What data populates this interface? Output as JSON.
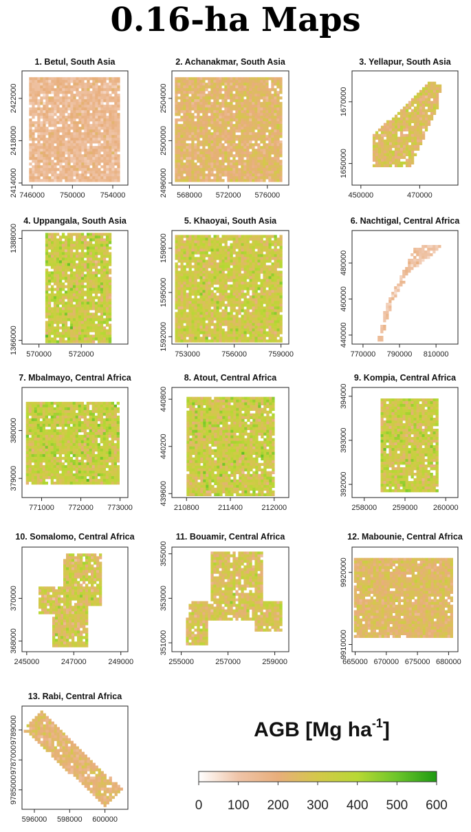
{
  "page_title": "0.16-ha Maps",
  "colors": {
    "scale": [
      "#ffffff",
      "#efc4a8",
      "#e8ae7b",
      "#d4c84a",
      "#b8d834",
      "#6cc52a",
      "#1e9a12"
    ]
  },
  "legend": {
    "title_main": "AGB [Mg ha",
    "title_sup": "-1",
    "title_close": "]",
    "min": 0,
    "max": 600,
    "ticks": [
      0,
      100,
      200,
      300,
      400,
      500,
      600
    ],
    "tick_labels": [
      "0",
      "100",
      "200",
      "300",
      "400",
      "500",
      "600"
    ]
  },
  "chart_data": [
    {
      "type": "heatmap",
      "title": "1. Betul, South Asia",
      "xlim": [
        745000,
        755500
      ],
      "ylim": [
        2413800,
        2424600
      ],
      "xticks": [
        746000,
        750000,
        754000
      ],
      "xtick_labels": [
        "746000",
        "750000",
        "754000"
      ],
      "yticks": [
        2414000,
        2418000,
        2422000
      ],
      "ytick_labels": [
        "2414000",
        "2418000",
        "2422000"
      ],
      "shape": [
        [
          745700,
          2414200
        ],
        [
          754800,
          2414200
        ],
        [
          754800,
          2424000
        ],
        [
          745700,
          2424000
        ]
      ],
      "mean_agb": 150,
      "spread": 60,
      "gap_fraction": 0.08
    },
    {
      "type": "heatmap",
      "title": "2. Achanakmar, South Asia",
      "xlim": [
        566200,
        578200
      ],
      "ylim": [
        2495800,
        2506600
      ],
      "xticks": [
        568000,
        572000,
        576000
      ],
      "xtick_labels": [
        "568000",
        "572000",
        "576000"
      ],
      "yticks": [
        2496000,
        2500000,
        2504000
      ],
      "ytick_labels": [
        "2496000",
        "2500000",
        "2504000"
      ],
      "shape": [
        [
          566500,
          2496000
        ],
        [
          577500,
          2496000
        ],
        [
          577500,
          2506000
        ],
        [
          566500,
          2506000
        ]
      ],
      "mean_agb": 230,
      "spread": 70,
      "gap_fraction": 0.05
    },
    {
      "type": "heatmap",
      "title": "3. Yellapur, South Asia",
      "xlim": [
        447000,
        483000
      ],
      "ylim": [
        1643000,
        1680000
      ],
      "xticks": [
        450000,
        470000
      ],
      "xtick_labels": [
        "450000",
        "470000"
      ],
      "yticks": [
        1650000,
        1670000
      ],
      "ytick_labels": [
        "1650000",
        "1670000"
      ],
      "shape": [
        [
          454000,
          1649000
        ],
        [
          467000,
          1649000
        ],
        [
          476000,
          1668000
        ],
        [
          477500,
          1675500
        ],
        [
          473500,
          1676500
        ],
        [
          454000,
          1659000
        ]
      ],
      "mean_agb": 260,
      "spread": 90,
      "gap_fraction": 0.05
    },
    {
      "type": "heatmap",
      "title": "4. Uppangala, South Asia",
      "xlim": [
        569200,
        574200
      ],
      "ylim": [
        1365200,
        1389700
      ],
      "xticks": [
        570000,
        572000
      ],
      "xtick_labels": [
        "570000",
        "572000"
      ],
      "yticks": [
        1366000,
        1388000
      ],
      "ytick_labels": [
        "1366000",
        "1388000"
      ],
      "shape": [
        [
          570300,
          1365400
        ],
        [
          573400,
          1365400
        ],
        [
          573400,
          1389200
        ],
        [
          570300,
          1389200
        ]
      ],
      "mean_agb": 330,
      "spread": 110,
      "gap_fraction": 0.06
    },
    {
      "type": "heatmap",
      "title": "5. Khaoyai, South Asia",
      "xlim": [
        752000,
        759500
      ],
      "ylim": [
        1591500,
        1599200
      ],
      "xticks": [
        753000,
        756000,
        759000
      ],
      "xtick_labels": [
        "753000",
        "756000",
        "759000"
      ],
      "yticks": [
        1592000,
        1595000,
        1598000
      ],
      "ytick_labels": [
        "1592000",
        "1595000",
        "1598000"
      ],
      "shape": [
        [
          752200,
          1591700
        ],
        [
          759100,
          1591700
        ],
        [
          759100,
          1598900
        ],
        [
          752200,
          1598900
        ]
      ],
      "mean_agb": 320,
      "spread": 100,
      "gap_fraction": 0.06
    },
    {
      "type": "heatmap",
      "title": "6. Nachtigal, Central Africa",
      "xlim": [
        764000,
        822000
      ],
      "ylim": [
        435000,
        498000
      ],
      "xticks": [
        770000,
        790000,
        810000
      ],
      "xtick_labels": [
        "770000",
        "790000",
        "810000"
      ],
      "yticks": [
        440000,
        460000,
        480000
      ],
      "ytick_labels": [
        "440000",
        "460000",
        "480000"
      ],
      "shape": [
        [
          778000,
          436000
        ],
        [
          780000,
          436000
        ],
        [
          786000,
          458000
        ],
        [
          796000,
          476000
        ],
        [
          807000,
          483000
        ],
        [
          814000,
          490000
        ],
        [
          798000,
          489000
        ],
        [
          794000,
          479000
        ],
        [
          789000,
          469000
        ],
        [
          782000,
          455000
        ]
      ],
      "mean_agb": 120,
      "spread": 50,
      "gap_fraction": 0.15
    },
    {
      "type": "heatmap",
      "title": "7. Mbalmayo, Central Africa",
      "xlim": [
        770500,
        773200
      ],
      "ylim": [
        378600,
        380900
      ],
      "xticks": [
        771000,
        772000,
        773000
      ],
      "xtick_labels": [
        "771000",
        "772000",
        "773000"
      ],
      "yticks": [
        379000,
        380000
      ],
      "ytick_labels": [
        "379000",
        "380000"
      ],
      "shape": [
        [
          770600,
          378850
        ],
        [
          773000,
          378850
        ],
        [
          773000,
          380600
        ],
        [
          770600,
          380600
        ]
      ],
      "mean_agb": 340,
      "spread": 110,
      "gap_fraction": 0.04
    },
    {
      "type": "heatmap",
      "title": "8. Atout, Central Africa",
      "xlim": [
        210600,
        212200
      ],
      "ylim": [
        439550,
        440950
      ],
      "xticks": [
        210800,
        211400,
        212000
      ],
      "xtick_labels": [
        "210800",
        "211400",
        "212000"
      ],
      "yticks": [
        439600,
        440200,
        440800
      ],
      "ytick_labels": [
        "439600",
        "440200",
        "440800"
      ],
      "shape": [
        [
          210800,
          439560
        ],
        [
          212000,
          439560
        ],
        [
          212000,
          440830
        ],
        [
          210800,
          440830
        ]
      ],
      "mean_agb": 330,
      "spread": 110,
      "gap_fraction": 0.05
    },
    {
      "type": "heatmap",
      "title": "9. Kompia, Central Africa",
      "xlim": [
        257700,
        260300
      ],
      "ylim": [
        391700,
        394200
      ],
      "xticks": [
        258000,
        259000,
        260000
      ],
      "xtick_labels": [
        "258000",
        "259000",
        "260000"
      ],
      "yticks": [
        392000,
        393000,
        394000
      ],
      "ytick_labels": [
        "392000",
        "393000",
        "394000"
      ],
      "shape": [
        [
          258400,
          391850
        ],
        [
          259800,
          391850
        ],
        [
          259800,
          393950
        ],
        [
          258400,
          393950
        ]
      ],
      "mean_agb": 330,
      "spread": 110,
      "gap_fraction": 0.06
    },
    {
      "type": "heatmap",
      "title": "10. Somalomo, Central Africa",
      "xlim": [
        244800,
        249300
      ],
      "ylim": [
        367500,
        372400
      ],
      "xticks": [
        245000,
        247000,
        249000
      ],
      "xtick_labels": [
        "245000",
        "247000",
        "249000"
      ],
      "yticks": [
        368000,
        370000
      ],
      "ytick_labels": [
        "368000",
        "370000"
      ],
      "shape": [
        [
          246100,
          367700
        ],
        [
          247600,
          367700
        ],
        [
          247600,
          369600
        ],
        [
          248200,
          369600
        ],
        [
          248200,
          372100
        ],
        [
          246500,
          372100
        ],
        [
          246500,
          370500
        ],
        [
          245500,
          370500
        ],
        [
          245500,
          369200
        ],
        [
          246100,
          369200
        ]
      ],
      "mean_agb": 290,
      "spread": 110,
      "gap_fraction": 0.05
    },
    {
      "type": "heatmap",
      "title": "11. Bouamir, Central Africa",
      "xlim": [
        254600,
        259600
      ],
      "ylim": [
        350600,
        355300
      ],
      "xticks": [
        255000,
        257000,
        259000
      ],
      "xtick_labels": [
        "255000",
        "257000",
        "259000"
      ],
      "yticks": [
        351000,
        353000,
        355000
      ],
      "ytick_labels": [
        "351000",
        "353000",
        "355000"
      ],
      "shape": [
        [
          255200,
          350900
        ],
        [
          256200,
          350900
        ],
        [
          256200,
          352000
        ],
        [
          258200,
          352000
        ],
        [
          258200,
          351500
        ],
        [
          259300,
          351500
        ],
        [
          259300,
          352900
        ],
        [
          258500,
          352900
        ],
        [
          258500,
          355100
        ],
        [
          256300,
          355100
        ],
        [
          256300,
          352900
        ],
        [
          255400,
          352900
        ],
        [
          255200,
          351800
        ]
      ],
      "mean_agb": 280,
      "spread": 100,
      "gap_fraction": 0.08
    },
    {
      "type": "heatmap",
      "title": "12. Mabounie, Central Africa",
      "xlim": [
        664500,
        681500
      ],
      "ylim": [
        9909000,
        9923500
      ],
      "xticks": [
        665000,
        670000,
        675000,
        680000
      ],
      "xtick_labels": [
        "665000",
        "670000",
        "675000",
        "680000"
      ],
      "yticks": [
        9910000,
        9920000
      ],
      "ytick_labels": [
        "9910000",
        "9920000"
      ],
      "shape": [
        [
          664800,
          9911000
        ],
        [
          680800,
          9911000
        ],
        [
          680800,
          9922000
        ],
        [
          664800,
          9922000
        ]
      ],
      "mean_agb": 250,
      "spread": 70,
      "gap_fraction": 0.04
    },
    {
      "type": "heatmap",
      "title": "13. Rabi, Central Africa",
      "xlim": [
        595300,
        601300
      ],
      "ylim": [
        9783700,
        9790600
      ],
      "xticks": [
        596000,
        598000,
        600000
      ],
      "xtick_labels": [
        "596000",
        "598000",
        "600000"
      ],
      "yticks": [
        9785000,
        9787000,
        9789000
      ],
      "ytick_labels": [
        "9785000",
        "9787000",
        "9789000"
      ],
      "shape": [
        [
          595400,
          9789000
        ],
        [
          596400,
          9790300
        ],
        [
          601000,
          9785000
        ],
        [
          600000,
          9783900
        ]
      ],
      "mean_agb": 220,
      "spread": 70,
      "gap_fraction": 0.06
    }
  ]
}
